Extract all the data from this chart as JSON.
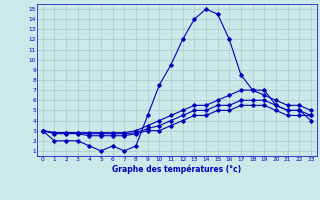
{
  "title": "Graphe des températures (°c)",
  "background_color": "#cce8e8",
  "grid_color": "#aacccc",
  "line_color": "#0000bb",
  "x_labels": [
    "0",
    "1",
    "2",
    "3",
    "4",
    "5",
    "6",
    "7",
    "8",
    "9",
    "10",
    "11",
    "12",
    "13",
    "14",
    "15",
    "16",
    "17",
    "18",
    "19",
    "20",
    "21",
    "22",
    "23"
  ],
  "ylim": [
    0.5,
    15.5
  ],
  "xlim": [
    -0.5,
    23.5
  ],
  "yticks": [
    1,
    2,
    3,
    4,
    5,
    6,
    7,
    8,
    9,
    10,
    11,
    12,
    13,
    14,
    15
  ],
  "series": {
    "actual": [
      3.0,
      2.0,
      2.0,
      2.0,
      1.5,
      1.0,
      1.5,
      1.0,
      1.5,
      4.5,
      7.5,
      9.5,
      12.0,
      14.0,
      15.0,
      14.5,
      12.0,
      8.5,
      7.0,
      7.0,
      5.5,
      5.0,
      5.0,
      4.0
    ],
    "line2": [
      3.0,
      2.8,
      2.8,
      2.8,
      2.8,
      2.8,
      2.8,
      2.8,
      3.0,
      3.5,
      4.0,
      4.5,
      5.0,
      5.5,
      5.5,
      6.0,
      6.5,
      7.0,
      7.0,
      6.5,
      6.0,
      5.5,
      5.5,
      5.0
    ],
    "line3": [
      3.0,
      2.8,
      2.8,
      2.8,
      2.7,
      2.7,
      2.7,
      2.7,
      2.8,
      3.2,
      3.5,
      4.0,
      4.5,
      5.0,
      5.0,
      5.5,
      5.5,
      6.0,
      6.0,
      6.0,
      5.5,
      5.0,
      5.0,
      4.5
    ],
    "line4": [
      3.0,
      2.7,
      2.7,
      2.7,
      2.5,
      2.5,
      2.5,
      2.5,
      2.7,
      3.0,
      3.0,
      3.5,
      4.0,
      4.5,
      4.5,
      5.0,
      5.0,
      5.5,
      5.5,
      5.5,
      5.0,
      4.5,
      4.5,
      4.5
    ]
  }
}
